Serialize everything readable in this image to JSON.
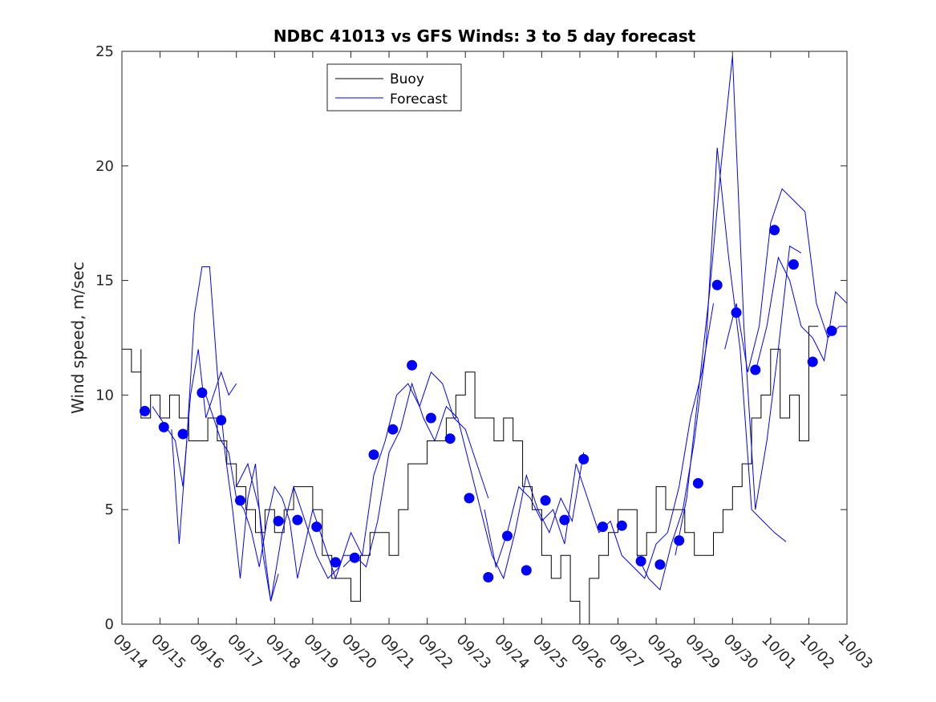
{
  "chart_data": {
    "type": "line",
    "title": "NDBC 41013 vs GFS Winds: 3 to 5 day forecast",
    "xlabel": "",
    "ylabel": "Wind speed, m/sec",
    "xlim": [
      0,
      19
    ],
    "ylim": [
      0,
      25
    ],
    "yticks": [
      0,
      5,
      10,
      15,
      20,
      25
    ],
    "xtick_labels": [
      "09/14",
      "09/15",
      "09/16",
      "09/17",
      "09/18",
      "09/19",
      "09/20",
      "09/21",
      "09/22",
      "09/23",
      "09/24",
      "09/25",
      "09/26",
      "09/27",
      "09/28",
      "09/29",
      "09/30",
      "10/01",
      "10/02",
      "10/03"
    ],
    "grid": false,
    "legend": {
      "placement": "top-left",
      "entries": [
        "Buoy",
        "Forecast"
      ]
    },
    "colors": {
      "buoy": "#000000",
      "forecast": "#0000ff",
      "points": "#0000ff"
    },
    "buoy": {
      "name": "Buoy",
      "x": [
        0,
        0.25,
        0.5,
        0.5,
        0.75,
        1.0,
        1.25,
        1.5,
        1.75,
        2.0,
        2.25,
        2.5,
        2.75,
        3.0,
        3.25,
        3.5,
        3.75,
        4.0,
        4.25,
        4.5,
        4.75,
        5.0,
        5.25,
        5.5,
        5.75,
        6.0,
        6.25,
        6.5,
        6.75,
        7.0,
        7.25,
        7.5,
        7.75,
        8.0,
        8.25,
        8.5,
        8.75,
        9.0,
        9.25,
        9.5,
        9.75,
        10.0,
        10.25,
        10.5,
        10.75,
        11.0,
        11.25,
        11.5,
        11.75,
        12.0,
        12.25,
        12.5,
        12.75,
        13.0,
        13.25,
        13.5,
        13.75,
        14.0,
        14.25,
        14.5,
        14.75,
        15.0,
        15.25,
        15.5,
        15.75,
        16.0,
        16.25,
        16.5,
        16.75,
        17.0,
        17.25,
        17.5,
        17.75,
        18.0,
        18.25
      ],
      "values": [
        12,
        11,
        12,
        9,
        10,
        9,
        10,
        9,
        8,
        8,
        9,
        8,
        7,
        6,
        5,
        4,
        5,
        4,
        5,
        6,
        6,
        5,
        3,
        2,
        2,
        1,
        3,
        4,
        4,
        3,
        5,
        7,
        7,
        8,
        8,
        9,
        10,
        11,
        9,
        9,
        8,
        9,
        8,
        6,
        5,
        3,
        2,
        3,
        1,
        0,
        2,
        3,
        4,
        5,
        5,
        3,
        4,
        6,
        5,
        5,
        4,
        3,
        3,
        4,
        5,
        6,
        7,
        9,
        10,
        12,
        9,
        10,
        8,
        13,
        13
      ],
      "values_note": "buoy trace is a noisy step trace; values are approximate reads"
    },
    "forecast_runs": [
      {
        "name": "Forecast",
        "x": [
          0.8,
          1.0,
          1.2,
          1.4,
          1.6,
          1.8,
          2.0,
          2.2,
          2.4,
          2.6,
          2.8,
          3.0
        ],
        "values": [
          9.5,
          9.0,
          8.5,
          8.0,
          6.0,
          10.0,
          12.0,
          9.0,
          10.0,
          11.0,
          10.0,
          10.5
        ]
      },
      {
        "name": "Forecast",
        "x": [
          1.3,
          1.5,
          1.7,
          1.9,
          2.1,
          2.3,
          2.5,
          2.7,
          2.9,
          3.1,
          3.3,
          3.5,
          3.7,
          3.9,
          4.1
        ],
        "values": [
          8.5,
          3.5,
          8.0,
          13.5,
          15.6,
          15.6,
          11.0,
          7.5,
          5.0,
          2.0,
          5.5,
          7.0,
          3.0,
          1.0,
          2.2
        ]
      },
      {
        "name": "Forecast",
        "x": [
          2.2,
          2.4,
          2.6,
          2.8,
          3.0,
          3.2,
          3.4,
          3.6,
          3.8,
          4.0,
          4.2,
          4.4,
          4.6,
          4.8,
          5.0,
          5.2,
          5.4,
          5.6,
          5.8,
          6.0
        ],
        "values": [
          10.0,
          9.0,
          8.0,
          7.5,
          5.5,
          5.0,
          4.0,
          2.5,
          4.5,
          6.0,
          5.5,
          4.5,
          2.0,
          3.5,
          5.0,
          4.0,
          3.0,
          2.0,
          3.0,
          3.0
        ]
      },
      {
        "name": "Forecast",
        "x": [
          3.0,
          3.3,
          3.6,
          3.9,
          4.2,
          4.5,
          4.8,
          5.1,
          5.4,
          5.7,
          6.0,
          6.3,
          6.6,
          6.9,
          7.2,
          7.5,
          7.8,
          8.1,
          8.4,
          8.7,
          9.0,
          9.3,
          9.6
        ],
        "values": [
          6.0,
          7.0,
          5.0,
          1.0,
          4.0,
          6.0,
          4.5,
          3.0,
          2.0,
          2.5,
          4.0,
          3.0,
          6.5,
          8.0,
          10.0,
          10.5,
          9.5,
          11.0,
          10.5,
          9.0,
          8.5,
          7.0,
          5.5
        ]
      },
      {
        "name": "Forecast",
        "x": [
          5.8,
          6.1,
          6.4,
          6.7,
          7.0,
          7.3,
          7.6,
          7.9,
          8.2,
          8.5,
          8.8,
          9.1,
          9.4,
          9.7,
          10.0,
          10.3,
          10.6,
          10.9,
          11.2,
          11.5,
          11.8,
          12.1
        ],
        "values": [
          2.5,
          3.0,
          2.5,
          4.5,
          7.5,
          8.5,
          10.5,
          9.0,
          8.0,
          9.5,
          9.0,
          7.0,
          5.0,
          3.0,
          2.0,
          4.0,
          6.5,
          5.0,
          4.0,
          5.5,
          4.5,
          7.5
        ]
      },
      {
        "name": "Forecast",
        "x": [
          9.5,
          9.8,
          10.1,
          10.4,
          10.7,
          11.0,
          11.3,
          11.6,
          11.9,
          12.2,
          12.5,
          12.8,
          13.1,
          13.4,
          13.7,
          14.0,
          14.3,
          14.6,
          14.9,
          15.2,
          15.5
        ],
        "values": [
          5.0,
          2.5,
          4.0,
          6.0,
          5.5,
          4.5,
          5.0,
          3.5,
          7.0,
          5.5,
          4.0,
          4.5,
          3.0,
          2.5,
          2.0,
          3.5,
          4.0,
          6.0,
          9.0,
          11.0,
          14.0
        ]
      },
      {
        "name": "Forecast",
        "x": [
          13.5,
          13.8,
          14.1,
          14.4,
          14.7,
          15.0,
          15.3,
          15.6,
          15.9,
          16.2,
          16.5,
          16.8,
          17.1,
          17.4
        ],
        "values": [
          3.0,
          2.0,
          1.5,
          3.5,
          5.0,
          8.0,
          12.0,
          20.8,
          16.0,
          12.0,
          5.0,
          4.5,
          4.0,
          3.6
        ]
      },
      {
        "name": "Forecast",
        "x": [
          14.5,
          14.8,
          15.1,
          15.4,
          15.7,
          16.0,
          16.3,
          16.6,
          16.9,
          17.2,
          17.5,
          17.8
        ],
        "values": [
          3.0,
          5.5,
          10.0,
          14.5,
          20.0,
          24.8,
          13.0,
          5.0,
          8.0,
          12.0,
          16.5,
          16.2
        ]
      },
      {
        "name": "Forecast",
        "x": [
          15.8,
          16.1,
          16.4,
          16.7,
          17.0,
          17.3,
          17.6,
          17.9,
          18.2,
          18.5,
          18.8,
          19.0
        ],
        "values": [
          12.0,
          14.0,
          11.0,
          13.0,
          17.5,
          19.0,
          18.5,
          18.0,
          14.0,
          12.5,
          13.0,
          13.0
        ]
      },
      {
        "name": "Forecast",
        "x": [
          16.6,
          16.9,
          17.2,
          17.5,
          17.8,
          18.1,
          18.4,
          18.7,
          19.0
        ],
        "values": [
          11.0,
          13.0,
          16.0,
          15.0,
          13.0,
          12.5,
          11.5,
          14.5,
          14.0
        ]
      }
    ],
    "forecast_points": {
      "name": "Forecast",
      "x": [
        0.6,
        1.1,
        1.6,
        2.1,
        2.6,
        3.1,
        4.1,
        4.6,
        5.1,
        5.6,
        6.1,
        6.6,
        7.1,
        7.6,
        8.1,
        8.6,
        9.1,
        9.6,
        10.1,
        10.6,
        11.1,
        11.6,
        12.1,
        12.6,
        13.1,
        13.6,
        14.1,
        14.6,
        15.1,
        15.6,
        16.1,
        16.6,
        17.1,
        17.6,
        18.1,
        18.6
      ],
      "values": [
        9.3,
        8.6,
        8.3,
        10.1,
        8.9,
        5.4,
        4.5,
        4.55,
        4.25,
        2.7,
        2.9,
        7.4,
        8.5,
        11.3,
        9.0,
        8.1,
        5.5,
        2.05,
        3.85,
        2.35,
        5.4,
        4.55,
        7.2,
        4.25,
        4.3,
        2.75,
        2.6,
        3.65,
        6.15,
        14.8,
        13.6,
        11.1,
        17.2,
        15.7,
        11.45,
        12.8
      ]
    }
  }
}
